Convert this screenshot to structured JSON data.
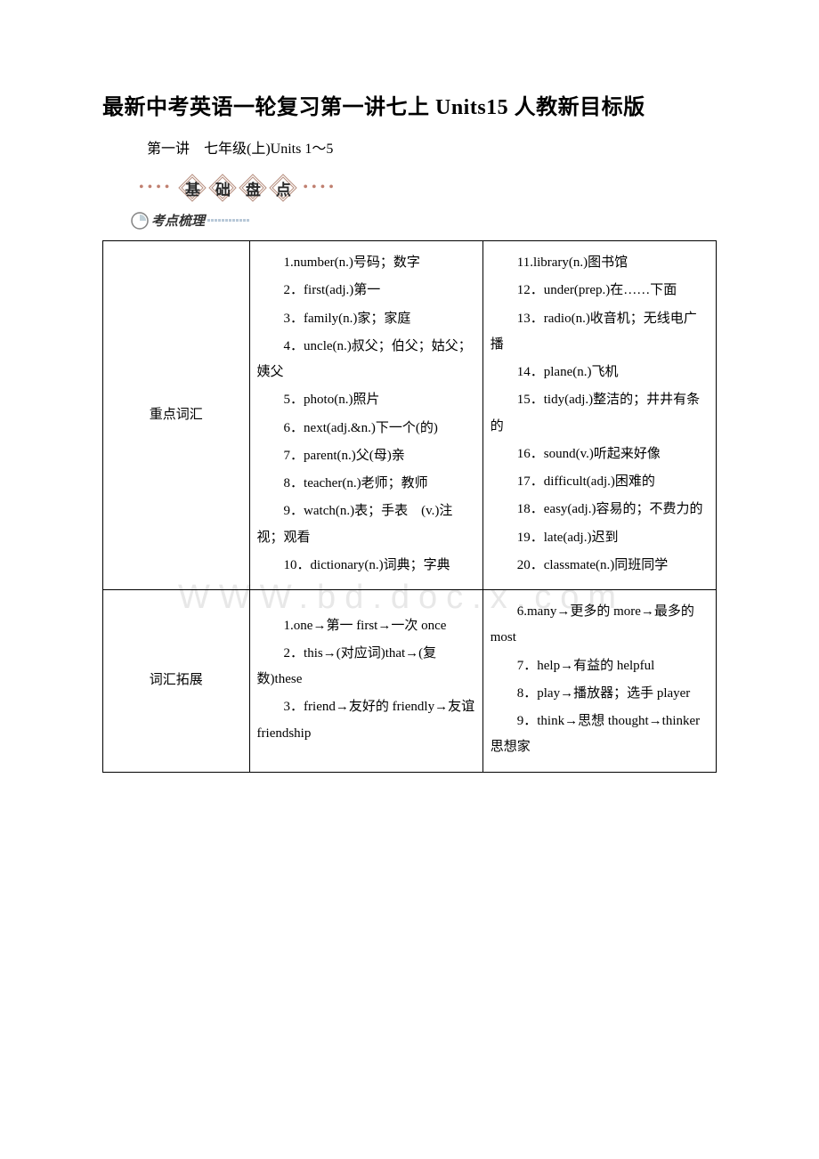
{
  "title": "最新中考英语一轮复习第一讲七上 Units15 人教新目标版",
  "subtitle": "第一讲　七年级(上)Units 1～5",
  "deco_chars": [
    "基",
    "础",
    "盘",
    "点"
  ],
  "subheader": "考点梳理",
  "watermark": "WWW.bd.doc.x.com",
  "table": {
    "rows": [
      {
        "label": "重点词汇",
        "col1": [
          "1.number(n.)号码；数字",
          "2．first(adj.)第一",
          "3．family(n.)家；家庭",
          "4．uncle(n.)叔父；伯父；姑父；姨父",
          "5．photo(n.)照片",
          "6．next(adj.&n.)下一个(的)",
          "7．parent(n.)父(母)亲",
          "8．teacher(n.)老师；教师",
          "9．watch(n.)表；手表　(v.)注视；观看",
          "10．dictionary(n.)词典；字典"
        ],
        "col2": [
          "11.library(n.)图书馆",
          "12．under(prep.)在……下面",
          "13．radio(n.)收音机；无线电广播",
          "14．plane(n.)飞机",
          "15．tidy(adj.)整洁的；井井有条的",
          "16．sound(v.)听起来好像",
          "17．difficult(adj.)困难的",
          "18．easy(adj.)容易的；不费力的",
          "19．late(adj.)迟到",
          "20．classmate(n.)同班同学"
        ]
      },
      {
        "label": "词汇拓展",
        "col1": [
          "1.one→第一 first→一次 once",
          "2．this→(对应词)that→(复数)these",
          "3．friend→友好的 friendly→友谊 friendship"
        ],
        "col2": [
          "6.many→更多的 more→最多的 most",
          "7．help→有益的 helpful",
          "8．play→播放器；选手 player",
          "9．think→思想 thought→thinker 思想家"
        ]
      }
    ]
  }
}
